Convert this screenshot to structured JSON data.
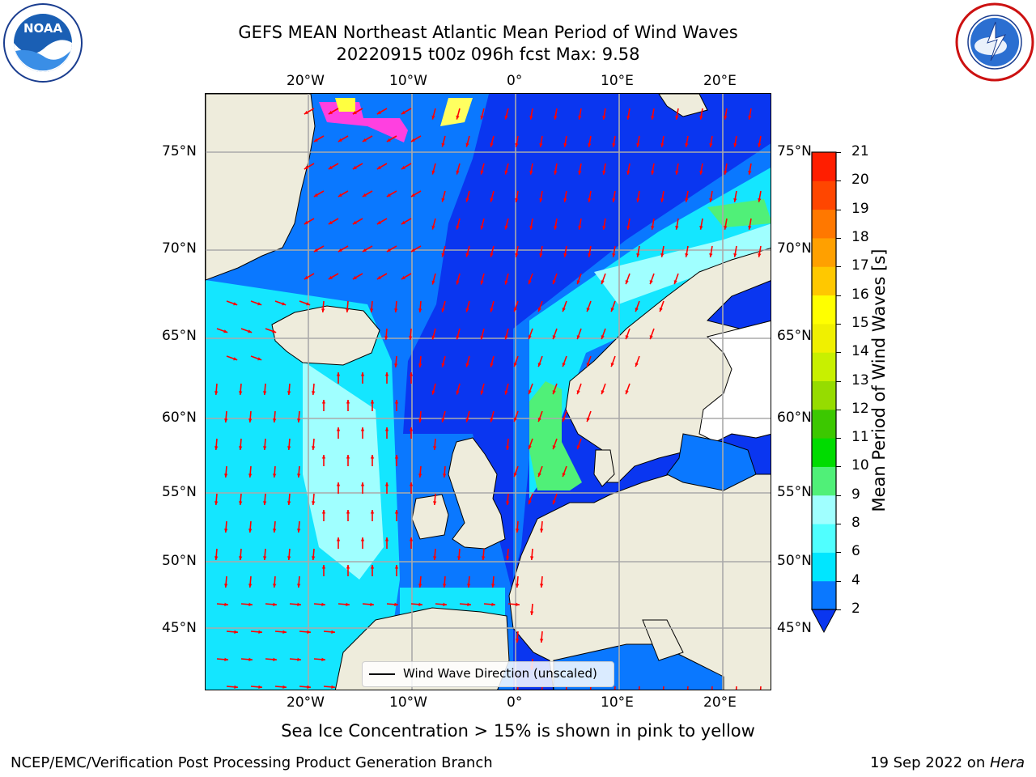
{
  "header": {
    "title_line1": "GEFS MEAN Northeast Atlantic Mean Period of Wind Waves",
    "title_line2": "20220915 t00z 096h fcst   Max: 9.58"
  },
  "logos": {
    "noaa": {
      "text": "NOAA",
      "ring_text": "NATIONAL OCEANIC AND ATMOSPHERIC ADMINISTRATION · U.S. DEPARTMENT OF COMMERCE"
    },
    "nws": {
      "ring_text": "NATIONAL WEATHER SERVICE"
    }
  },
  "map": {
    "lon_labels": [
      "20°W",
      "10°W",
      "0°",
      "10°E",
      "20°E"
    ],
    "lat_labels": [
      "75°N",
      "70°N",
      "65°N",
      "60°N",
      "55°N",
      "50°N",
      "45°N"
    ],
    "legend_label": "Wind Wave Direction (unscaled)",
    "colors": {
      "ocean_deep": "#0a36f0",
      "ocean_mid": "#0a78ff",
      "ocean_light": "#14e6ff",
      "ocean_pale": "#a0ffff",
      "green": "#50f078",
      "land": "#eeecdc",
      "arrow": "#ff0000",
      "grid": "#aaaaaa"
    }
  },
  "colorbar": {
    "title": "Mean Period of Wind Waves [s]",
    "ticks": [
      "2",
      "4",
      "6",
      "8",
      "9",
      "10",
      "11",
      "12",
      "13",
      "14",
      "15",
      "16",
      "17",
      "18",
      "19",
      "20",
      "21"
    ],
    "colors": [
      "#0a78ff",
      "#00e6ff",
      "#50ffff",
      "#a0ffff",
      "#50f078",
      "#00dc00",
      "#3cc800",
      "#96dc00",
      "#c8f000",
      "#f0f000",
      "#ffff00",
      "#ffc800",
      "#ffa000",
      "#ff7800",
      "#ff4600",
      "#ff1e00"
    ],
    "under_color": "#0a36f0"
  },
  "subtitle": "Sea Ice Concentration > 15% is shown in pink to yellow",
  "footer": {
    "left": "NCEP/EMC/Verification Post Processing Product Generation Branch",
    "right_prefix": "19 Sep 2022 on ",
    "right_host": "Hera"
  }
}
